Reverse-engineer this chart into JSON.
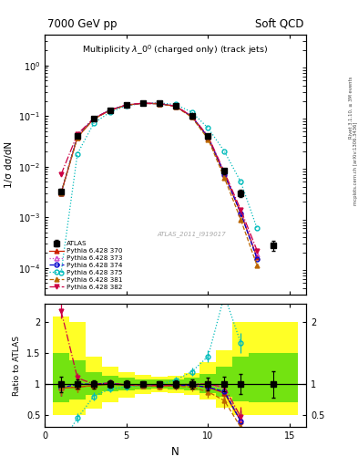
{
  "title_left": "7000 GeV pp",
  "title_right": "Soft QCD",
  "obs_label": "Multiplicity \\lambda_0$^0$ (charged only) (track jets)",
  "watermark": "ATLAS_2011_I919017",
  "right_label1": "Rivet 3.1.10, ≥ 3M events",
  "right_label2": "mcplots.cern.ch [arXiv:1306.3436]",
  "ylabel_main": "1/σ dσ/dN",
  "ylabel_ratio": "Ratio to ATLAS",
  "xlabel": "N",
  "ylim_main": [
    3e-05,
    4.0
  ],
  "ylim_ratio": [
    0.3,
    2.3
  ],
  "xlim": [
    0,
    16
  ],
  "atlas_x": [
    1,
    2,
    3,
    4,
    5,
    6,
    7,
    8,
    9,
    10,
    11,
    12,
    14
  ],
  "atlas_y": [
    0.0032,
    0.04,
    0.09,
    0.13,
    0.168,
    0.182,
    0.182,
    0.16,
    0.1,
    0.04,
    0.0082,
    0.003,
    0.00028
  ],
  "atlas_yerr_lo": [
    0.0004,
    0.003,
    0.006,
    0.008,
    0.009,
    0.009,
    0.009,
    0.009,
    0.007,
    0.004,
    0.001,
    0.0005,
    6e-05
  ],
  "atlas_yerr_hi": [
    0.0004,
    0.003,
    0.006,
    0.008,
    0.009,
    0.009,
    0.009,
    0.009,
    0.007,
    0.004,
    0.001,
    0.0005,
    6e-05
  ],
  "py370_x": [
    1,
    2,
    3,
    4,
    5,
    6,
    7,
    8,
    9,
    10,
    11,
    12,
    13
  ],
  "py370_y": [
    0.003,
    0.038,
    0.088,
    0.13,
    0.165,
    0.178,
    0.176,
    0.156,
    0.098,
    0.038,
    0.007,
    0.0012,
    0.00016
  ],
  "py370_color": "#cc2200",
  "py370_ls": "-",
  "py370_marker": "^",
  "py370_filled": true,
  "py370_label": "Pythia 6.428 370",
  "py373_x": [
    1,
    2,
    3,
    4,
    5,
    6,
    7,
    8,
    9,
    10,
    11,
    12,
    13
  ],
  "py373_y": [
    0.003,
    0.04,
    0.09,
    0.132,
    0.166,
    0.18,
    0.178,
    0.158,
    0.1,
    0.04,
    0.0075,
    0.0013,
    0.00018
  ],
  "py373_color": "#cc44cc",
  "py373_ls": ":",
  "py373_marker": "^",
  "py373_filled": false,
  "py373_label": "Pythia 6.428 373",
  "py374_x": [
    1,
    2,
    3,
    4,
    5,
    6,
    7,
    8,
    9,
    10,
    11,
    12,
    13
  ],
  "py374_y": [
    0.003,
    0.04,
    0.09,
    0.132,
    0.165,
    0.178,
    0.176,
    0.156,
    0.098,
    0.038,
    0.0072,
    0.0012,
    0.00015
  ],
  "py374_color": "#0000cc",
  "py374_ls": "--",
  "py374_marker": "o",
  "py374_filled": false,
  "py374_label": "Pythia 6.428 374",
  "py375_x": [
    1,
    2,
    3,
    4,
    5,
    6,
    7,
    8,
    9,
    10,
    11,
    12,
    13
  ],
  "py375_y": [
    8e-05,
    0.018,
    0.072,
    0.12,
    0.16,
    0.178,
    0.182,
    0.17,
    0.12,
    0.058,
    0.02,
    0.005,
    0.0006
  ],
  "py375_color": "#00bbbb",
  "py375_ls": ":",
  "py375_marker": "o",
  "py375_filled": false,
  "py375_label": "Pythia 6.428 375",
  "py381_x": [
    1,
    2,
    3,
    4,
    5,
    6,
    7,
    8,
    9,
    10,
    11,
    12,
    13
  ],
  "py381_y": [
    0.003,
    0.038,
    0.088,
    0.13,
    0.165,
    0.178,
    0.175,
    0.155,
    0.095,
    0.035,
    0.006,
    0.0009,
    0.00011
  ],
  "py381_color": "#bb6600",
  "py381_ls": "--",
  "py381_marker": "^",
  "py381_filled": true,
  "py381_label": "Pythia 6.428 381",
  "py382_x": [
    1,
    2,
    3,
    4,
    5,
    6,
    7,
    8,
    9,
    10,
    11,
    12,
    13
  ],
  "py382_y": [
    0.007,
    0.044,
    0.09,
    0.132,
    0.166,
    0.18,
    0.178,
    0.158,
    0.1,
    0.04,
    0.0078,
    0.0014,
    0.00022
  ],
  "py382_color": "#cc0044",
  "py382_ls": "-.",
  "py382_marker": "v",
  "py382_filled": true,
  "py382_label": "Pythia 6.428 382",
  "band_yellow_lo": [
    0.5,
    0.5,
    0.6,
    0.7,
    0.78,
    0.84,
    0.87,
    0.86,
    0.83,
    0.75,
    0.62,
    0.5,
    0.5,
    0.5,
    0.5
  ],
  "band_yellow_hi": [
    2.1,
    2.0,
    1.45,
    1.28,
    1.2,
    1.15,
    1.12,
    1.14,
    1.18,
    1.35,
    1.55,
    2.0,
    2.0,
    2.0,
    2.0
  ],
  "band_green_lo": [
    0.7,
    0.75,
    0.82,
    0.88,
    0.9,
    0.92,
    0.93,
    0.92,
    0.9,
    0.86,
    0.79,
    0.72,
    0.7,
    0.7,
    0.7
  ],
  "band_green_hi": [
    1.5,
    1.38,
    1.2,
    1.13,
    1.1,
    1.08,
    1.07,
    1.08,
    1.1,
    1.16,
    1.28,
    1.45,
    1.5,
    1.5,
    1.5
  ],
  "band_x_edges": [
    0.5,
    1.5,
    2.5,
    3.5,
    4.5,
    5.5,
    6.5,
    7.5,
    8.5,
    9.5,
    10.5,
    11.5,
    12.5,
    13.5,
    15.5
  ]
}
